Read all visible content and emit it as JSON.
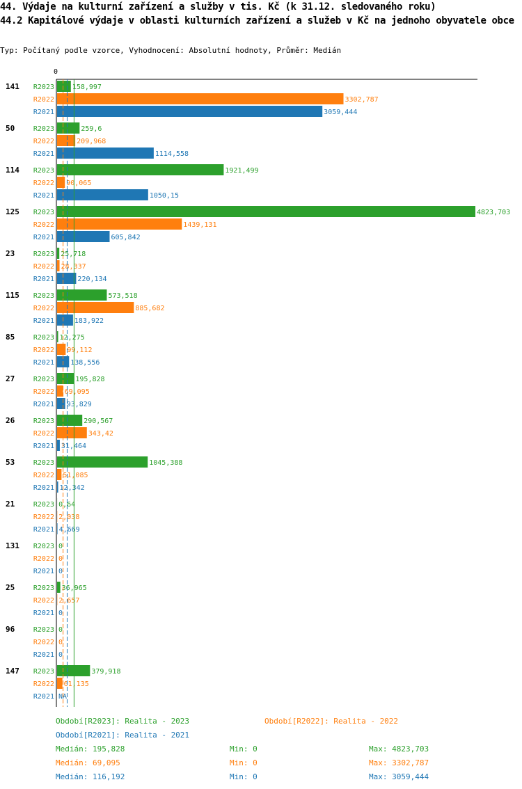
{
  "title_line1": "44. Výdaje na kulturní zařízení a služby v tis. Kč (k 31.12. sledovaného roku)",
  "title_line2": "44.2 Kapitálové výdaje v oblasti kulturních zařízení a služeb v Kč na jednoho obyvatele obce",
  "subtitle": "Typ: Počítaný podle vzorce, Vyhodnocení: Absolutní hodnoty, Průměr: Medián",
  "colors": {
    "R2023": "#2ca02c",
    "R2022": "#ff7f0e",
    "R2021": "#1f77b4"
  },
  "chart_data": {
    "type": "bar",
    "orientation": "horizontal",
    "axis_zero_label": "0",
    "xlim": [
      0,
      4823.703
    ],
    "grid": false,
    "median_lines": true,
    "categories": [
      "141",
      "50",
      "114",
      "125",
      "23",
      "115",
      "85",
      "27",
      "26",
      "53",
      "21",
      "131",
      "25",
      "96",
      "147"
    ],
    "series": [
      {
        "name": "R2023",
        "values": [
          158.997,
          259.6,
          1921.499,
          4823.703,
          25.718,
          573.518,
          12.275,
          195.828,
          290.567,
          1045.388,
          0.64,
          0,
          36.965,
          0,
          379.918
        ],
        "labels": [
          "158,997",
          "259,6",
          "1921,499",
          "4823,703",
          "25,718",
          "573,518",
          "12,275",
          "195,828",
          "290,567",
          "1045,388",
          "0,64",
          "0",
          "36,965",
          "0",
          "379,918"
        ]
      },
      {
        "name": "R2022",
        "values": [
          3302.787,
          209.968,
          90.065,
          1439.131,
          28.337,
          885.682,
          99.112,
          69.095,
          343.42,
          51.085,
          2.038,
          0,
          2.657,
          0,
          61.135
        ],
        "labels": [
          "3302,787",
          "209,968",
          "90,065",
          "1439,131",
          "28,337",
          "885,682",
          "99,112",
          "69,095",
          "343,42",
          "51,085",
          "2,038",
          "0",
          "2,657",
          "0",
          "61,135"
        ]
      },
      {
        "name": "R2021",
        "values": [
          3059.444,
          1114.558,
          1050.15,
          605.842,
          220.134,
          183.922,
          138.556,
          93.829,
          31.464,
          12.342,
          4.669,
          0,
          0,
          0,
          null
        ],
        "labels": [
          "3059,444",
          "1114,558",
          "1050,15",
          "605,842",
          "220,134",
          "183,922",
          "138,556",
          "93,829",
          "31,464",
          "12,342",
          "4,669",
          "0",
          "0",
          "0",
          "NA"
        ]
      }
    ],
    "medians": {
      "R2023": 195.828,
      "R2022": 69.095,
      "R2021": 116.192
    }
  },
  "legend": {
    "r2023": "Období[R2023]: Realita - 2023",
    "r2022": "Období[R2022]: Realita - 2022",
    "r2021": "Období[R2021]: Realita - 2021"
  },
  "stats": [
    {
      "median": "Medián: 195,828",
      "min": "Min: 0",
      "max": "Max: 4823,703"
    },
    {
      "median": "Medián: 69,095",
      "min": "Min: 0",
      "max": "Max: 3302,787"
    },
    {
      "median": "Medián: 116,192",
      "min": "Min: 0",
      "max": "Max: 3059,444"
    }
  ]
}
